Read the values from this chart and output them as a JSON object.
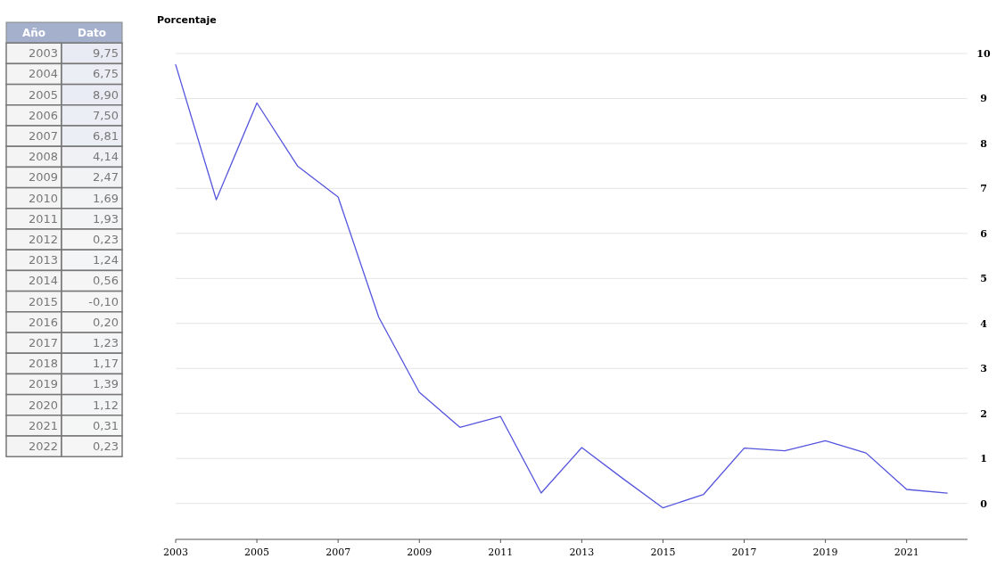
{
  "chart_data": [
    {
      "type": "heatmap",
      "ylabel": "Año",
      "categories": [
        "Dato"
      ],
      "y_categories": [
        "2003",
        "2004",
        "2005",
        "2006",
        "2007",
        "2008",
        "2009",
        "2010",
        "2011",
        "2012",
        "2013",
        "2014",
        "2015",
        "2016",
        "2017",
        "2018",
        "2019",
        "2020",
        "2021",
        "2022"
      ],
      "cells": [
        [
          9.75
        ],
        [
          6.75
        ],
        [
          8.9
        ],
        [
          7.5
        ],
        [
          6.81
        ],
        [
          4.14
        ],
        [
          2.47
        ],
        [
          1.69
        ],
        [
          1.93
        ],
        [
          0.23
        ],
        [
          1.24
        ],
        [
          0.56
        ],
        [
          -0.1
        ],
        [
          0.2
        ],
        [
          1.23
        ],
        [
          1.17
        ],
        [
          1.39
        ],
        [
          1.12
        ],
        [
          0.31
        ],
        [
          0.23
        ]
      ],
      "cell_labels": [
        [
          "9,75"
        ],
        [
          "6,75"
        ],
        [
          "8,90"
        ],
        [
          "7,50"
        ],
        [
          "6,81"
        ],
        [
          "4,14"
        ],
        [
          "2,47"
        ],
        [
          "1,69"
        ],
        [
          "1,93"
        ],
        [
          "0,23"
        ],
        [
          "1,24"
        ],
        [
          "0,56"
        ],
        [
          "-0,10"
        ],
        [
          "0,20"
        ],
        [
          "1,23"
        ],
        [
          "1,17"
        ],
        [
          "1,39"
        ],
        [
          "1,12"
        ],
        [
          "0,31"
        ],
        [
          "0,23"
        ]
      ]
    },
    {
      "type": "line",
      "ylabel": "Porcentaje",
      "x": [
        2003,
        2004,
        2005,
        2006,
        2007,
        2008,
        2009,
        2010,
        2011,
        2012,
        2013,
        2014,
        2015,
        2016,
        2017,
        2018,
        2019,
        2020,
        2021,
        2022
      ],
      "series": [
        {
          "color": "#5555dd",
          "values": [
            9.75,
            6.75,
            8.9,
            7.5,
            6.81,
            4.14,
            2.47,
            1.69,
            1.93,
            0.23,
            1.24,
            0.56,
            -0.1,
            0.2,
            1.23,
            1.17,
            1.39,
            1.12,
            0.31,
            0.23
          ]
        }
      ],
      "xlim": [
        2003,
        2022.5
      ],
      "xticks": [
        2003,
        2005,
        2007,
        2009,
        2011,
        2013,
        2015,
        2017,
        2019,
        2021
      ],
      "ylim": [
        -0.8,
        10
      ],
      "yticks": [
        0,
        1,
        2,
        3,
        4,
        5,
        6,
        7,
        8,
        9,
        10
      ],
      "grid": "y",
      "marker": "none",
      "line_style": "solid"
    }
  ]
}
